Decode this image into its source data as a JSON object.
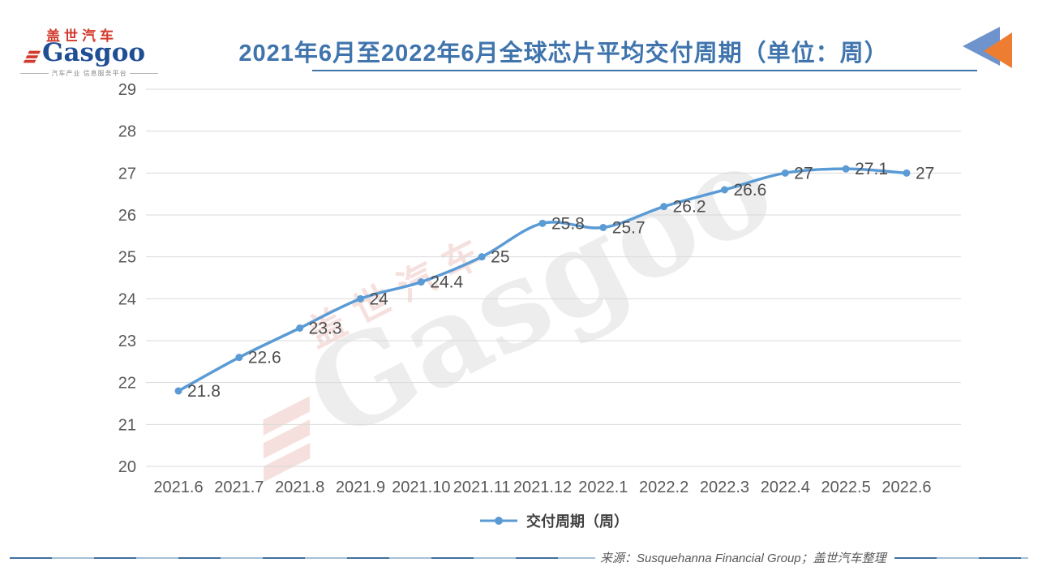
{
  "logo": {
    "cn": "盖世汽车",
    "en": "Gasgoo",
    "tagline": "汽车产业 信息服务平台"
  },
  "header": {
    "title": "2021年6月至2022年6月全球芯片平均交付周期（单位：周）"
  },
  "chart_data": {
    "type": "line",
    "title": "2021年6月至2022年6月全球芯片平均交付周期（单位：周）",
    "categories": [
      "2021.6",
      "2021.7",
      "2021.8",
      "2021.9",
      "2021.10",
      "2021.11",
      "2021.12",
      "2022.1",
      "2022.2",
      "2022.3",
      "2022.4",
      "2022.5",
      "2022.6"
    ],
    "series": [
      {
        "name": "交付周期（周）",
        "values": [
          21.8,
          22.6,
          23.3,
          24,
          24.4,
          25,
          25.8,
          25.7,
          26.2,
          26.6,
          27,
          27.1,
          27
        ]
      }
    ],
    "xlabel": "",
    "ylabel": "",
    "ylim": [
      20,
      29
    ],
    "ytick_step": 1,
    "grid": true,
    "legend_position": "bottom",
    "smooth": true,
    "marker": "circle",
    "data_labels": true
  },
  "footer": {
    "source": "来源：Susquehanna Financial Group；盖世汽车整理"
  },
  "colors": {
    "title": "#3F74AC",
    "line": "#5B9BD5",
    "grid": "#D9D9D9",
    "axis_text": "#595959",
    "label_text": "#4D4D4D",
    "logo_red": "#D3392C",
    "logo_blue": "#1F4E94",
    "icon_blue": "#6E93CD",
    "icon_orange": "#ED7D31"
  }
}
